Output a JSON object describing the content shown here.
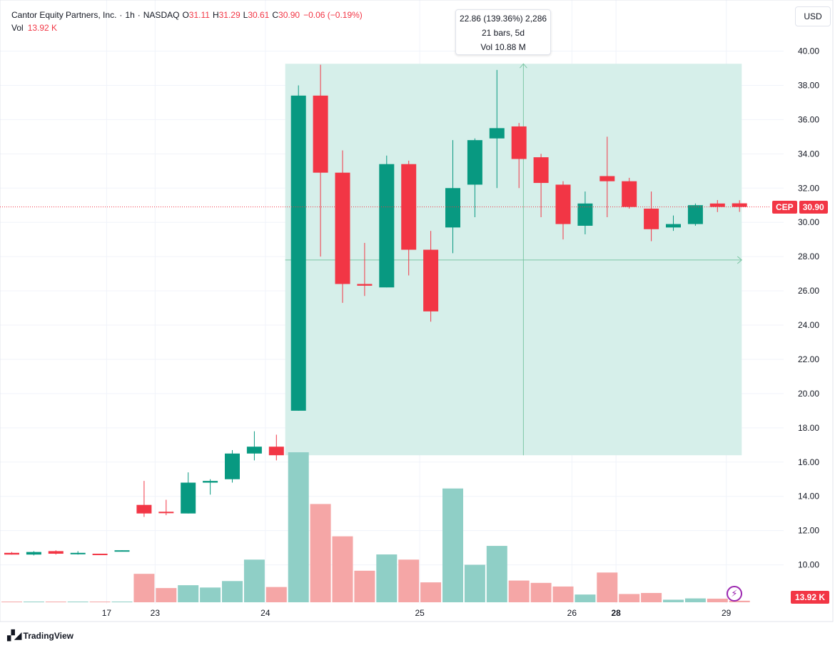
{
  "legend": {
    "symbol_name": "Cantor Equity Partners, Inc.",
    "interval": "1h",
    "exchange": "NASDAQ",
    "open_label": "O",
    "open": "31.11",
    "high_label": "H",
    "high": "31.29",
    "low_label": "L",
    "low": "30.61",
    "close_label": "C",
    "close": "30.90",
    "change": "−0.06 (−0.19%)",
    "vol_label": "Vol",
    "vol_value": "13.92 K"
  },
  "currency": "USD",
  "measure_tooltip": {
    "line1": "22.86 (139.36%) 2,286",
    "line2": "21 bars, 5d",
    "line3": "Vol 10.88 M"
  },
  "price_tag": {
    "symbol": "CEP",
    "value": "30.90"
  },
  "volume_tag": "13.92 K",
  "branding": "TradingView",
  "colors": {
    "up": "#089981",
    "down": "#f23645",
    "vol_up": "#8fcfc6",
    "vol_down": "#f5a6a6",
    "measure_fill": "#d6efea",
    "measure_line": "#7ec7a6"
  },
  "chart_data": {
    "type": "candlestick",
    "title": "Cantor Equity Partners, Inc. · 1h · NASDAQ",
    "ylim": [
      8.3,
      41.5
    ],
    "y_ticks": [
      "10.00",
      "12.00",
      "14.00",
      "16.00",
      "18.00",
      "20.00",
      "22.00",
      "24.00",
      "26.00",
      "28.00",
      "30.00",
      "32.00",
      "34.00",
      "36.00",
      "38.00",
      "40.00"
    ],
    "x_ticks": [
      {
        "label": "17",
        "index": 4.3,
        "bold": false
      },
      {
        "label": "23",
        "index": 6.5,
        "bold": false
      },
      {
        "label": "24",
        "index": 11.5,
        "bold": false
      },
      {
        "label": "25",
        "index": 18.5,
        "bold": false
      },
      {
        "label": "26",
        "index": 25.4,
        "bold": false
      },
      {
        "label": "28",
        "index": 27.4,
        "bold": true
      },
      {
        "label": "29",
        "index": 32.4,
        "bold": false
      }
    ],
    "last_price": 30.9,
    "candles": [
      {
        "o": 10.7,
        "h": 10.75,
        "l": 10.6,
        "c": 10.6
      },
      {
        "o": 10.6,
        "h": 10.8,
        "l": 10.55,
        "c": 10.75
      },
      {
        "o": 10.8,
        "h": 10.85,
        "l": 10.6,
        "c": 10.65
      },
      {
        "o": 10.65,
        "h": 10.8,
        "l": 10.6,
        "c": 10.7
      },
      {
        "o": 10.65,
        "h": 10.65,
        "l": 10.6,
        "c": 10.6
      },
      {
        "o": 10.8,
        "h": 10.85,
        "l": 10.8,
        "c": 10.85
      },
      {
        "o": 13.5,
        "h": 14.9,
        "l": 12.8,
        "c": 13.0
      },
      {
        "o": 13.1,
        "h": 13.8,
        "l": 12.9,
        "c": 13.05
      },
      {
        "o": 13.0,
        "h": 15.4,
        "l": 13.0,
        "c": 14.8
      },
      {
        "o": 14.8,
        "h": 15.0,
        "l": 14.1,
        "c": 14.9
      },
      {
        "o": 15.0,
        "h": 16.7,
        "l": 14.8,
        "c": 16.5
      },
      {
        "o": 16.5,
        "h": 17.8,
        "l": 16.1,
        "c": 16.9
      },
      {
        "o": 16.9,
        "h": 17.6,
        "l": 16.1,
        "c": 16.4
      },
      {
        "o": 19.0,
        "h": 38.0,
        "l": 19.0,
        "c": 37.4
      },
      {
        "o": 37.4,
        "h": 39.2,
        "l": 28.0,
        "c": 32.9
      },
      {
        "o": 32.9,
        "h": 34.2,
        "l": 25.3,
        "c": 26.4
      },
      {
        "o": 26.4,
        "h": 28.8,
        "l": 25.7,
        "c": 26.3
      },
      {
        "o": 26.2,
        "h": 33.9,
        "l": 26.2,
        "c": 33.4
      },
      {
        "o": 33.4,
        "h": 33.6,
        "l": 26.9,
        "c": 28.4
      },
      {
        "o": 28.4,
        "h": 29.5,
        "l": 24.2,
        "c": 24.8
      },
      {
        "o": 29.7,
        "h": 34.8,
        "l": 28.2,
        "c": 32.0
      },
      {
        "o": 32.2,
        "h": 34.9,
        "l": 30.3,
        "c": 34.8
      },
      {
        "o": 34.9,
        "h": 38.9,
        "l": 32.0,
        "c": 35.5
      },
      {
        "o": 35.6,
        "h": 35.8,
        "l": 32.0,
        "c": 33.7
      },
      {
        "o": 33.8,
        "h": 34.0,
        "l": 30.3,
        "c": 32.3
      },
      {
        "o": 32.2,
        "h": 32.4,
        "l": 29.0,
        "c": 29.9
      },
      {
        "o": 29.8,
        "h": 31.8,
        "l": 29.3,
        "c": 31.1
      },
      {
        "o": 32.7,
        "h": 35.0,
        "l": 30.3,
        "c": 32.4
      },
      {
        "o": 32.4,
        "h": 32.6,
        "l": 30.8,
        "c": 30.9
      },
      {
        "o": 30.8,
        "h": 31.8,
        "l": 28.9,
        "c": 29.6
      },
      {
        "o": 29.7,
        "h": 30.4,
        "l": 29.5,
        "c": 29.9
      },
      {
        "o": 29.9,
        "h": 31.1,
        "l": 29.8,
        "c": 31.0
      },
      {
        "o": 31.1,
        "h": 31.3,
        "l": 30.6,
        "c": 30.9
      },
      {
        "o": 31.11,
        "h": 31.29,
        "l": 30.61,
        "c": 30.9
      }
    ],
    "volume": [
      1,
      1,
      1,
      1,
      1,
      1,
      110,
      55,
      66,
      57,
      82,
      165,
      59,
      580,
      380,
      255,
      122,
      185,
      165,
      77,
      440,
      145,
      218,
      84,
      75,
      61,
      30,
      115,
      32,
      36,
      10,
      15,
      14,
      6
    ],
    "measure": {
      "from_price": 16.4,
      "to_price": 39.26,
      "start_index": 12.4,
      "end_index": 33.1,
      "arrow_price": 27.8,
      "arrow_index": 23.2
    }
  }
}
